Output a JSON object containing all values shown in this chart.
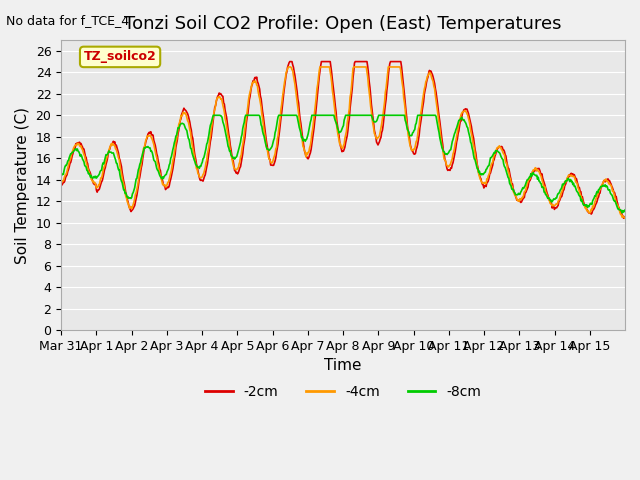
{
  "title": "Tonzi Soil CO2 Profile: Open (East) Temperatures",
  "no_data_text": "No data for f_TCE_4",
  "subtitle_box": "TZ_soilco2",
  "xlabel": "Time",
  "ylabel": "Soil Temperature (C)",
  "ylim": [
    0,
    27
  ],
  "yticks": [
    0,
    2,
    4,
    6,
    8,
    10,
    12,
    14,
    16,
    18,
    20,
    22,
    24,
    26
  ],
  "x_tick_labels": [
    "Mar 31",
    "Apr 1",
    "Apr 2",
    "Apr 3",
    "Apr 4",
    "Apr 5",
    "Apr 6",
    "Apr 7",
    "Apr 8",
    "Apr 9",
    "Apr 10",
    "Apr 11",
    "Apr 12",
    "Apr 13",
    "Apr 14",
    "Apr 15"
  ],
  "line_colors": [
    "#dd0000",
    "#ff9900",
    "#00cc00"
  ],
  "line_labels": [
    "-2cm",
    "-4cm",
    "-8cm"
  ],
  "bg_color": "#e8e8e8",
  "plot_bg_color": "#e8e8e8",
  "grid_color": "#ffffff",
  "title_fontsize": 13,
  "axis_label_fontsize": 11,
  "tick_fontsize": 9
}
